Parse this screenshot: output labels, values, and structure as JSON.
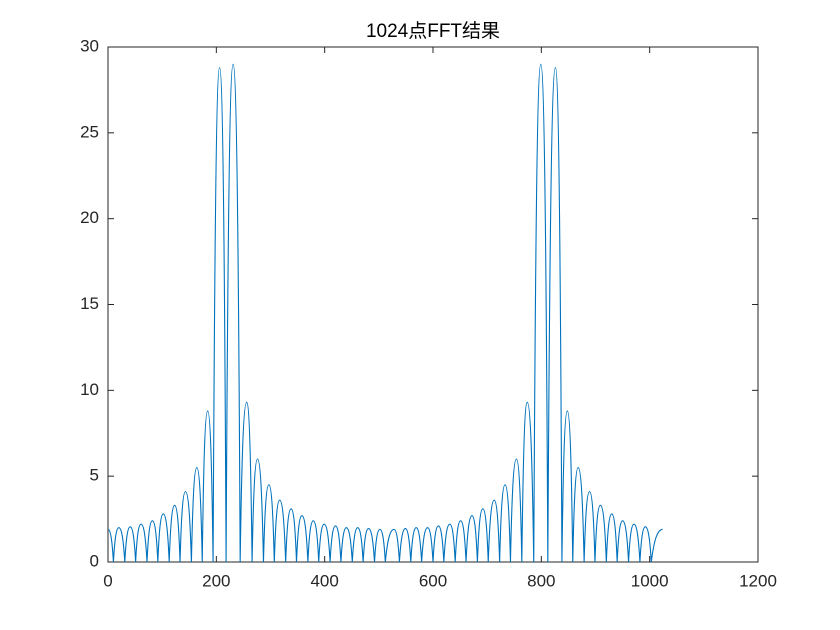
{
  "chart_data": {
    "type": "line",
    "title": "1024点FFT结果",
    "x": [
      0,
      10,
      20,
      31,
      41,
      51,
      61,
      72,
      82,
      92,
      102,
      113,
      123,
      133,
      143,
      154,
      164,
      174,
      184,
      194,
      206,
      218,
      231,
      244,
      256,
      266,
      276,
      287,
      297,
      307,
      317,
      328,
      338,
      348,
      358,
      369,
      379,
      389,
      399,
      410,
      420,
      430,
      440,
      451,
      461,
      471,
      481,
      492,
      502,
      512,
      528,
      538,
      549,
      559,
      569,
      579,
      590,
      600,
      610,
      620,
      631,
      641,
      651,
      661,
      672,
      682,
      692,
      702,
      713,
      723,
      733,
      743,
      754,
      764,
      774,
      786,
      799,
      812,
      826,
      838,
      848,
      858,
      868,
      879,
      889,
      899,
      909,
      920,
      930,
      940,
      950,
      961,
      971,
      982,
      992,
      1003,
      1024
    ],
    "values": [
      1.9,
      0,
      2.0,
      0,
      2.05,
      0,
      2.2,
      0,
      2.4,
      0,
      2.8,
      0,
      3.3,
      0,
      4.1,
      0,
      5.5,
      0,
      8.8,
      0,
      28.8,
      0,
      29.0,
      0,
      9.3,
      0,
      6.0,
      0,
      4.5,
      0,
      3.6,
      0,
      3.1,
      0,
      2.7,
      0,
      2.4,
      0,
      2.2,
      0,
      2.1,
      0,
      2.0,
      0,
      2.0,
      0,
      1.95,
      0,
      1.9,
      0,
      1.9,
      0,
      1.95,
      0,
      2.0,
      0,
      2.0,
      0,
      2.1,
      0,
      2.2,
      0,
      2.4,
      0,
      2.7,
      0,
      3.1,
      0,
      3.6,
      0,
      4.5,
      0,
      6.0,
      0,
      9.3,
      0,
      29.0,
      0,
      28.8,
      0,
      8.8,
      0,
      5.5,
      0,
      4.1,
      0,
      3.3,
      0,
      2.8,
      0,
      2.4,
      0,
      2.2,
      0,
      2.05,
      0,
      1.9
    ],
    "color": "#0072bd",
    "xlim": [
      0,
      1200
    ],
    "xticks": [
      0,
      200,
      400,
      600,
      800,
      1000,
      1200
    ],
    "ylim": [
      0,
      30
    ],
    "yticks": [
      0,
      5,
      10,
      15,
      20,
      25,
      30
    ]
  }
}
